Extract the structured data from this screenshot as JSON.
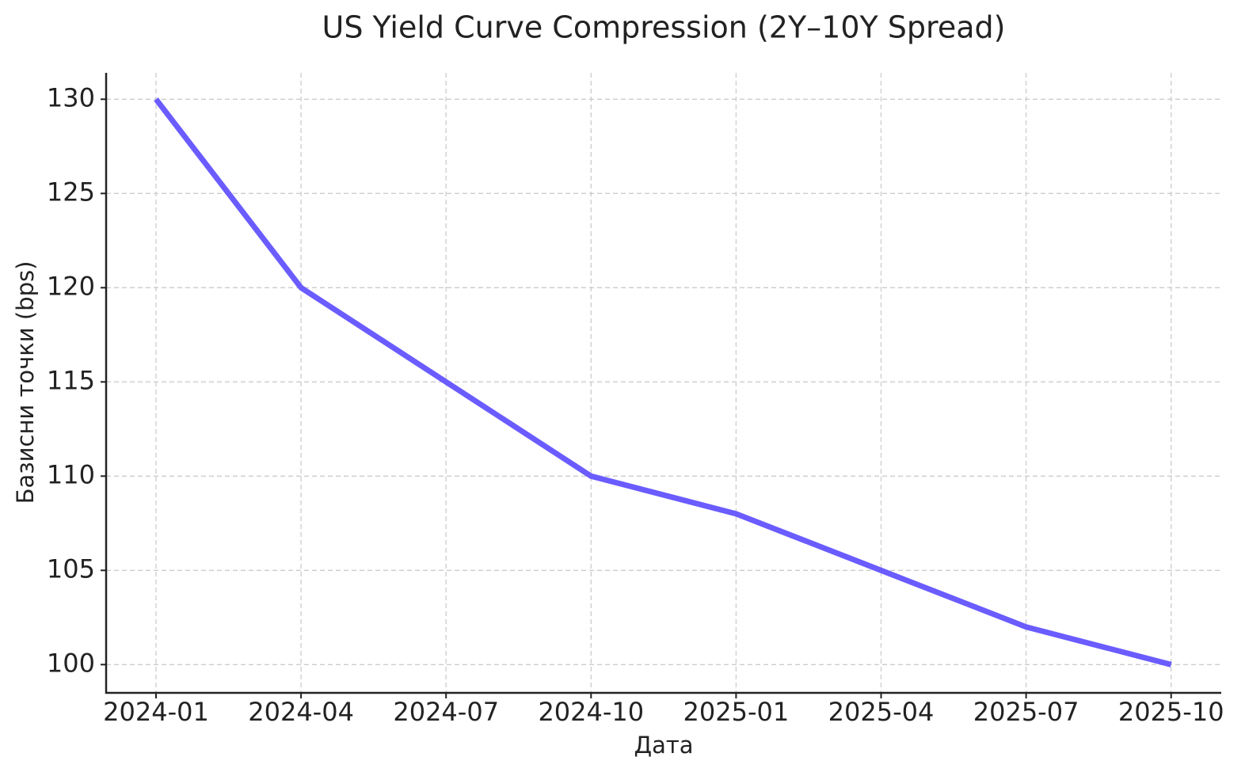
{
  "chart_data": {
    "type": "line",
    "title": "US Yield Curve Compression (2Y–10Y Spread)",
    "x_label": "Дата",
    "y_label": "Базисни точки (bps)",
    "categories": [
      "2024-01",
      "2024-04",
      "2024-07",
      "2024-10",
      "2025-01",
      "2025-04",
      "2025-07",
      "2025-10"
    ],
    "series": [
      {
        "name": "2Y–10Y Spread",
        "color": "#6a5cff",
        "values": [
          130,
          120,
          115,
          110,
          108,
          105,
          102,
          100
        ]
      }
    ],
    "ylim": [
      98.5,
      131.4
    ],
    "yticks": [
      100,
      105,
      110,
      115,
      120,
      125,
      130
    ],
    "grid": true
  }
}
